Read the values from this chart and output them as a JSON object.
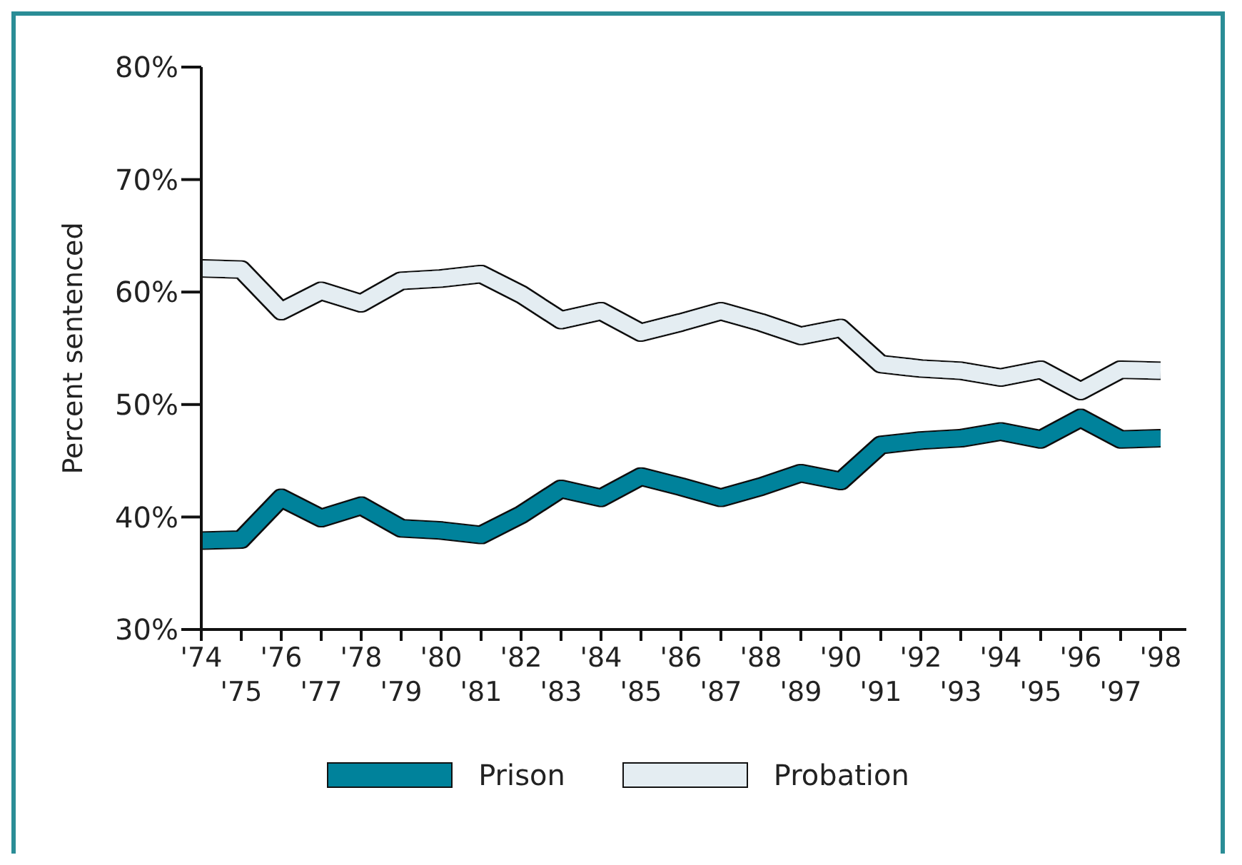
{
  "chart_data": {
    "type": "line",
    "categories": [
      "'74",
      "'75",
      "'76",
      "'77",
      "'78",
      "'79",
      "'80",
      "'81",
      "'82",
      "'83",
      "'84",
      "'85",
      "'86",
      "'87",
      "'88",
      "'89",
      "'90",
      "'91",
      "'92",
      "'93",
      "'94",
      "'95",
      "'96",
      "'97",
      "'98"
    ],
    "ylabel": "Percent sentenced",
    "ylim": [
      30,
      80
    ],
    "yticks": [
      {
        "value": 30,
        "label": "30%"
      },
      {
        "value": 40,
        "label": "40%"
      },
      {
        "value": 50,
        "label": "50%"
      },
      {
        "value": 60,
        "label": "60%"
      },
      {
        "value": 70,
        "label": "70%"
      },
      {
        "value": 80,
        "label": "80%"
      }
    ],
    "series": [
      {
        "name": "Prison",
        "color": "#00829b",
        "values": [
          37.9,
          38.0,
          41.7,
          39.9,
          41.0,
          39.0,
          38.8,
          38.4,
          40.2,
          42.5,
          41.7,
          43.6,
          42.7,
          41.7,
          42.7,
          43.9,
          43.2,
          46.4,
          46.8,
          47.0,
          47.6,
          46.9,
          48.8,
          46.9,
          47.0
        ]
      },
      {
        "name": "Probation",
        "color": "#e4edf2",
        "values": [
          62.1,
          62.0,
          58.3,
          60.1,
          59.0,
          61.0,
          61.2,
          61.6,
          59.8,
          57.5,
          58.3,
          56.4,
          57.3,
          58.3,
          57.3,
          56.1,
          56.8,
          53.6,
          53.2,
          53.0,
          52.4,
          53.1,
          51.2,
          53.1,
          53.0
        ]
      }
    ],
    "grid": false,
    "legend": "bottom",
    "marker": "none",
    "line_style": "solid"
  }
}
